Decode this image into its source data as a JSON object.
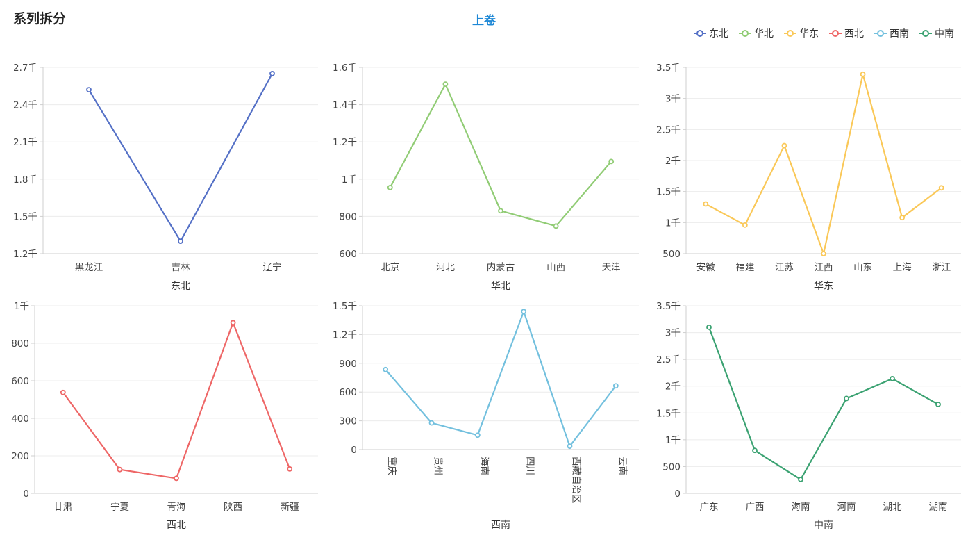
{
  "header": {
    "title": "系列拆分",
    "tab_label": "上卷"
  },
  "legend": [
    {
      "name": "东北",
      "color": "#5470c6"
    },
    {
      "name": "华北",
      "color": "#91cc75"
    },
    {
      "name": "华东",
      "color": "#fac858"
    },
    {
      "name": "西北",
      "color": "#ee6666"
    },
    {
      "name": "西南",
      "color": "#73c0de"
    },
    {
      "name": "中南",
      "color": "#3ba272"
    }
  ],
  "chart_data": [
    {
      "type": "line",
      "xlabel": "东北",
      "color": "#5470c6",
      "categories": [
        "黑龙江",
        "吉林",
        "辽宁"
      ],
      "values": [
        2520,
        1300,
        2650
      ],
      "ylim": [
        1200,
        2700
      ],
      "yticks": [
        1200,
        1500,
        1800,
        2100,
        2400,
        2700
      ],
      "ytick_labels": [
        "1.2千",
        "1.5千",
        "1.8千",
        "2.1千",
        "2.4千",
        "2.7千"
      ],
      "rotate_labels": false
    },
    {
      "type": "line",
      "xlabel": "华北",
      "color": "#91cc75",
      "categories": [
        "北京",
        "河北",
        "内蒙古",
        "山西",
        "天津"
      ],
      "values": [
        955,
        1510,
        830,
        748,
        1095
      ],
      "ylim": [
        600,
        1600
      ],
      "yticks": [
        600,
        800,
        1000,
        1200,
        1400,
        1600
      ],
      "ytick_labels": [
        "600",
        "800",
        "1千",
        "1.2千",
        "1.4千",
        "1.6千"
      ],
      "rotate_labels": false
    },
    {
      "type": "line",
      "xlabel": "华东",
      "color": "#fac858",
      "categories": [
        "安徽",
        "福建",
        "江苏",
        "江西",
        "山东",
        "上海",
        "浙江"
      ],
      "values": [
        1300,
        960,
        2240,
        500,
        3390,
        1080,
        1560
      ],
      "ylim": [
        500,
        3500
      ],
      "yticks": [
        500,
        1000,
        1500,
        2000,
        2500,
        3000,
        3500
      ],
      "ytick_labels": [
        "500",
        "1千",
        "1.5千",
        "2千",
        "2.5千",
        "3千",
        "3.5千"
      ],
      "rotate_labels": false
    },
    {
      "type": "line",
      "xlabel": "西北",
      "color": "#ee6666",
      "categories": [
        "甘肃",
        "宁夏",
        "青海",
        "陕西",
        "新疆"
      ],
      "values": [
        538,
        127,
        80,
        910,
        130
      ],
      "ylim": [
        0,
        1000
      ],
      "yticks": [
        0,
        200,
        400,
        600,
        800,
        1000
      ],
      "ytick_labels": [
        "0",
        "200",
        "400",
        "600",
        "800",
        "1千"
      ],
      "rotate_labels": false
    },
    {
      "type": "line",
      "xlabel": "西南",
      "color": "#73c0de",
      "categories": [
        "重庆",
        "贵州",
        "海南",
        "四川",
        "西藏自治区",
        "云南"
      ],
      "values": [
        835,
        278,
        150,
        1440,
        35,
        665
      ],
      "ylim": [
        0,
        1500
      ],
      "yticks": [
        0,
        300,
        600,
        900,
        1200,
        1500
      ],
      "ytick_labels": [
        "0",
        "300",
        "600",
        "900",
        "1.2千",
        "1.5千"
      ],
      "rotate_labels": true
    },
    {
      "type": "line",
      "xlabel": "中南",
      "color": "#3ba272",
      "categories": [
        "广东",
        "广西",
        "海南",
        "河南",
        "湖北",
        "湖南"
      ],
      "values": [
        3100,
        800,
        260,
        1770,
        2140,
        1660
      ],
      "ylim": [
        0,
        3500
      ],
      "yticks": [
        0,
        500,
        1000,
        1500,
        2000,
        2500,
        3000,
        3500
      ],
      "ytick_labels": [
        "0",
        "500",
        "1千",
        "1.5千",
        "2千",
        "2.5千",
        "3千",
        "3.5千"
      ],
      "rotate_labels": false
    }
  ]
}
